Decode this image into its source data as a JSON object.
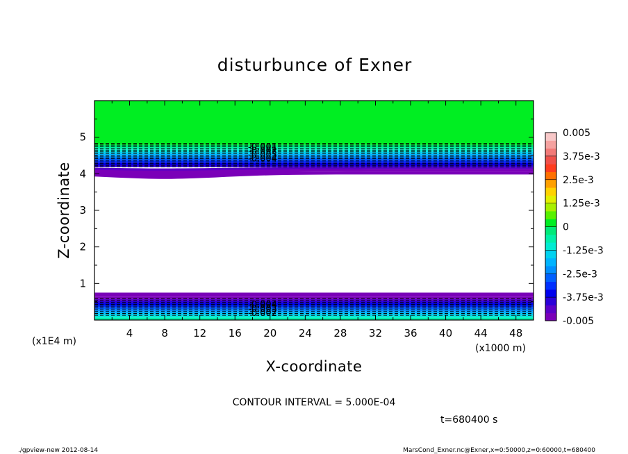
{
  "chart_data": {
    "type": "contour",
    "title": "disturbunce of Exner",
    "xlabel": "X-coordinate",
    "ylabel": "Z-coordinate",
    "x_unit_label": "(x1000 m)",
    "y_unit_label": "(x1E4 m)",
    "xlim": [
      0,
      50
    ],
    "ylim": [
      0,
      6
    ],
    "x_ticks": [
      4,
      8,
      12,
      16,
      20,
      24,
      28,
      32,
      36,
      40,
      44,
      48
    ],
    "y_ticks": [
      1,
      2,
      3,
      4,
      5
    ],
    "colorbar": {
      "range": [
        -0.005,
        0.005
      ],
      "tick_labels": [
        "0.005",
        "3.75e-3",
        "2.5e-3",
        "1.25e-3",
        "0",
        "-1.25e-3",
        "-2.5e-3",
        "-3.75e-3",
        "-0.005"
      ],
      "colors": [
        "#7a00b8",
        "#5a00c8",
        "#2a00d8",
        "#0000ee",
        "#0030ff",
        "#0060ff",
        "#0090ff",
        "#00b4ff",
        "#00d2f0",
        "#00ecd2",
        "#00f0a8",
        "#00ea78",
        "#00ee22",
        "#58f000",
        "#a8f000",
        "#e2f000",
        "#ffd200",
        "#ffa000",
        "#ff7000",
        "#ff3c1e",
        "#f0504a",
        "#f27a78",
        "#f5a2a0",
        "#f8c8c8"
      ]
    },
    "regions": [
      {
        "name": "upper",
        "z_from": 6.0,
        "z_to": 4.85,
        "value": "0"
      },
      {
        "name": "upper-gradient",
        "z_from": 4.85,
        "z_to": 4.0,
        "value_range": [
          -0.005,
          0
        ]
      },
      {
        "name": "interior",
        "z_from": 4.0,
        "z_to": 0.7,
        "value": "below -0.005"
      },
      {
        "name": "lower-gradient",
        "z_from": 0.7,
        "z_to": 0.0,
        "value_range": [
          -0.005,
          -0.001
        ]
      }
    ],
    "contour_labels_upper": [
      "-0.001",
      "-0.002",
      "-0.003",
      "-0.004"
    ],
    "contour_labels_lower": [
      "-0.004",
      "-0.003",
      "-0.002"
    ],
    "contour_interval_text": "CONTOUR INTERVAL = 5.000E-04",
    "time_text": "t=680400 s"
  },
  "footer": {
    "left": "./gpview-new   2012-08-14",
    "right": "MarsCond_Exner.nc@Exner,x=0:50000,z=0:60000,t=680400"
  }
}
